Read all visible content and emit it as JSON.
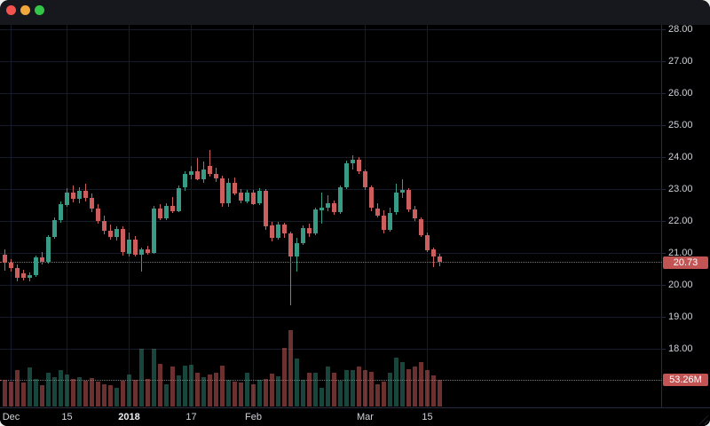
{
  "window": {
    "titlebar": {
      "background": "#17181d",
      "close_color": "#f4524e",
      "minimize_color": "#f0a73b",
      "zoom_color": "#32c748"
    }
  },
  "chart": {
    "colors": {
      "background": "#000000",
      "grid": "#161b2b",
      "separator": "#262b3f",
      "up": "#389b86",
      "down": "#cd5e5e",
      "volume_up": "rgba(56,155,134,0.45)",
      "volume_down": "rgba(205,94,94,0.52)",
      "price_line": "#d15454",
      "tag_background": "#c25454",
      "tag_text": "#ffffff",
      "axis_text": "#cfd2da",
      "axis_text_bold": "#eceef2"
    },
    "price_axis": {
      "labels": [
        {
          "value": 28,
          "label": "28.00"
        },
        {
          "value": 27,
          "label": "27.00"
        },
        {
          "value": 26,
          "label": "26.00"
        },
        {
          "value": 25,
          "label": "25.00"
        },
        {
          "value": 24,
          "label": "24.00"
        },
        {
          "value": 23,
          "label": "23.00"
        },
        {
          "value": 22,
          "label": "22.00"
        },
        {
          "value": 21,
          "label": "21.00"
        },
        {
          "value": 20,
          "label": "20.00"
        },
        {
          "value": 19,
          "label": "19.00"
        },
        {
          "value": 18,
          "label": "18.00"
        }
      ],
      "last_price_label": "20.73",
      "last_volume_label": "53.26M"
    }
  },
  "chart_data": {
    "type": "candlestick",
    "title": "",
    "ylim": [
      16.2,
      28.1
    ],
    "y_gridlines": [
      18,
      19,
      20,
      21,
      22,
      23,
      24,
      25,
      26,
      27,
      28
    ],
    "x_ticks": [
      {
        "index": 1,
        "label": "Dec",
        "bold": false
      },
      {
        "index": 10,
        "label": "15",
        "bold": false
      },
      {
        "index": 20,
        "label": "2018",
        "bold": true
      },
      {
        "index": 30,
        "label": "17",
        "bold": false
      },
      {
        "index": 40,
        "label": "Feb",
        "bold": false
      },
      {
        "index": 58,
        "label": "Mar",
        "bold": false
      },
      {
        "index": 68,
        "label": "15",
        "bold": false
      }
    ],
    "last_price": 20.73,
    "last_volume_millions": 53.26,
    "candles_format": [
      "open",
      "high",
      "low",
      "close",
      "volume_millions"
    ],
    "candles": [
      [
        20.95,
        21.1,
        20.42,
        20.7,
        53
      ],
      [
        20.7,
        20.8,
        20.4,
        20.52,
        50
      ],
      [
        20.52,
        20.64,
        20.1,
        20.22,
        72
      ],
      [
        20.36,
        20.46,
        20.12,
        20.22,
        48
      ],
      [
        20.22,
        20.4,
        20.12,
        20.3,
        78
      ],
      [
        20.3,
        20.92,
        20.24,
        20.86,
        55
      ],
      [
        20.86,
        21.04,
        20.66,
        20.72,
        42
      ],
      [
        20.72,
        21.56,
        20.68,
        21.5,
        68
      ],
      [
        21.5,
        22.12,
        21.44,
        22.02,
        58
      ],
      [
        22.02,
        22.62,
        21.95,
        22.52,
        72
      ],
      [
        22.52,
        23.02,
        22.44,
        22.9,
        64
      ],
      [
        22.9,
        23.12,
        22.58,
        22.7,
        55
      ],
      [
        22.7,
        23.06,
        22.55,
        22.95,
        58
      ],
      [
        22.95,
        23.16,
        22.6,
        22.72,
        52
      ],
      [
        22.72,
        22.85,
        22.28,
        22.38,
        57
      ],
      [
        22.38,
        22.52,
        21.9,
        22.0,
        49
      ],
      [
        22.0,
        22.18,
        21.6,
        21.7,
        45
      ],
      [
        21.7,
        21.88,
        21.42,
        21.5,
        42
      ],
      [
        21.5,
        21.84,
        21.4,
        21.76,
        38
      ],
      [
        21.76,
        21.84,
        20.92,
        21.05,
        52
      ],
      [
        20.98,
        21.64,
        20.88,
        21.42,
        64
      ],
      [
        21.42,
        21.52,
        20.88,
        20.96,
        53
      ],
      [
        20.96,
        21.18,
        20.44,
        21.12,
        115
      ],
      [
        21.12,
        21.22,
        20.94,
        21.02,
        55
      ],
      [
        21.02,
        22.46,
        20.96,
        22.4,
        115
      ],
      [
        22.4,
        22.52,
        22.02,
        22.1,
        85
      ],
      [
        22.1,
        22.56,
        22.04,
        22.48,
        44
      ],
      [
        22.48,
        22.74,
        22.24,
        22.32,
        80
      ],
      [
        22.32,
        23.12,
        22.28,
        23.04,
        62
      ],
      [
        23.04,
        23.56,
        22.95,
        23.46,
        81
      ],
      [
        23.46,
        23.72,
        23.3,
        23.56,
        83
      ],
      [
        23.56,
        23.96,
        23.26,
        23.32,
        68
      ],
      [
        23.32,
        23.86,
        23.18,
        23.62,
        58
      ],
      [
        23.72,
        24.22,
        23.4,
        23.48,
        64
      ],
      [
        23.48,
        23.66,
        23.22,
        23.34,
        68
      ],
      [
        23.34,
        23.42,
        22.44,
        22.55,
        82
      ],
      [
        22.55,
        23.32,
        22.42,
        23.2,
        53
      ],
      [
        23.2,
        23.36,
        22.8,
        22.88,
        50
      ],
      [
        22.88,
        23.0,
        22.56,
        22.62,
        48
      ],
      [
        22.62,
        22.96,
        22.55,
        22.9,
        68
      ],
      [
        22.9,
        22.96,
        22.48,
        22.55,
        44
      ],
      [
        22.55,
        23.02,
        22.5,
        22.95,
        53
      ],
      [
        22.95,
        23.0,
        21.72,
        21.85,
        55
      ],
      [
        21.85,
        21.96,
        21.36,
        21.45,
        65
      ],
      [
        21.45,
        21.96,
        21.4,
        21.88,
        60
      ],
      [
        21.88,
        21.95,
        21.48,
        21.6,
        117
      ],
      [
        21.6,
        21.66,
        19.35,
        20.88,
        153
      ],
      [
        20.88,
        21.48,
        20.42,
        21.3,
        95
      ],
      [
        21.3,
        21.85,
        21.25,
        21.78,
        53
      ],
      [
        21.78,
        21.92,
        21.5,
        21.6,
        68
      ],
      [
        21.6,
        22.42,
        21.55,
        22.35,
        68
      ],
      [
        22.35,
        22.88,
        21.92,
        22.42,
        37
      ],
      [
        22.42,
        22.8,
        22.3,
        22.55,
        80
      ],
      [
        22.55,
        22.65,
        22.2,
        22.28,
        67
      ],
      [
        22.28,
        23.12,
        22.22,
        23.06,
        52
      ],
      [
        23.06,
        23.88,
        23.0,
        23.8,
        73
      ],
      [
        23.8,
        24.06,
        23.62,
        23.92,
        72
      ],
      [
        23.92,
        24.0,
        23.48,
        23.55,
        80
      ],
      [
        23.55,
        23.62,
        22.98,
        23.05,
        73
      ],
      [
        23.05,
        23.12,
        22.32,
        22.4,
        70
      ],
      [
        22.4,
        22.55,
        22.1,
        22.18,
        45
      ],
      [
        22.18,
        22.32,
        21.6,
        21.74,
        50
      ],
      [
        21.74,
        22.42,
        21.66,
        22.26,
        68
      ],
      [
        22.26,
        23.16,
        22.2,
        22.88,
        98
      ],
      [
        22.88,
        23.3,
        22.72,
        22.96,
        88
      ],
      [
        22.96,
        23.02,
        22.26,
        22.35,
        75
      ],
      [
        22.35,
        22.46,
        22.0,
        22.08,
        80
      ],
      [
        22.05,
        22.12,
        21.5,
        21.56,
        89
      ],
      [
        21.56,
        21.64,
        21.04,
        21.1,
        73
      ],
      [
        21.1,
        21.18,
        20.56,
        20.88,
        63
      ],
      [
        20.9,
        20.98,
        20.58,
        20.73,
        53.26
      ]
    ]
  }
}
